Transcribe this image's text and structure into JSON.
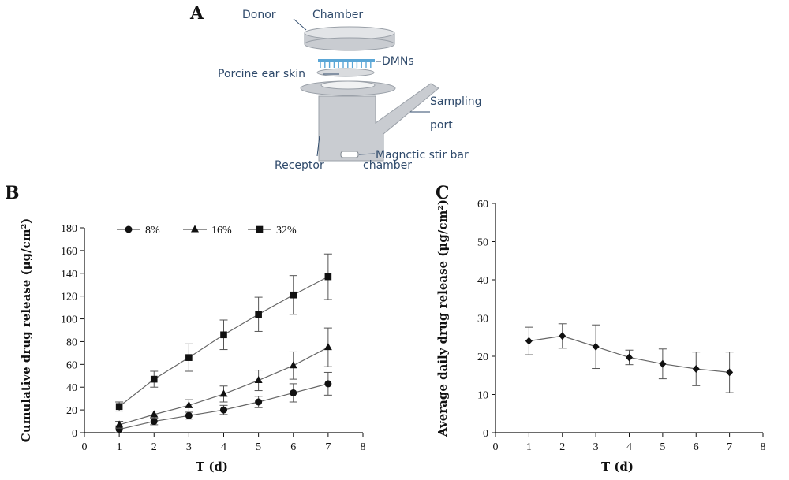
{
  "panel_letters": [
    "A",
    "B",
    "C"
  ],
  "diagram": {
    "labels": {
      "donor": "Donor",
      "chamber": "Chamber",
      "dmns": "DMNs",
      "skin": "Porcine ear skin",
      "sampling": "Sampling",
      "port": "port",
      "stir": "Magnctic stir bar",
      "receptor": "Receptor",
      "receptor_chamber": "chamber"
    },
    "colors": {
      "body": "#c9ccd1",
      "edge": "#9aa0a8",
      "needles": "#5aa6d6",
      "text": "#2f4a6b"
    }
  },
  "chart_data": [
    {
      "type": "line",
      "panel": "B",
      "xlabel": "T (d)",
      "ylabel": "Cumulative drug release (μg/cm²)",
      "xlim": [
        0,
        8
      ],
      "ylim": [
        0,
        180
      ],
      "xticks": [
        0,
        1,
        2,
        3,
        4,
        5,
        6,
        7,
        8
      ],
      "yticks": [
        0,
        20,
        40,
        60,
        80,
        100,
        120,
        140,
        160,
        180
      ],
      "legend_position": "top",
      "x": [
        1,
        2,
        3,
        4,
        5,
        6,
        7
      ],
      "series": [
        {
          "name": "8%",
          "marker": "circle",
          "values": [
            3,
            10,
            15,
            20,
            27,
            35,
            43
          ],
          "errors": [
            3,
            3,
            3,
            4,
            5,
            8,
            10
          ]
        },
        {
          "name": "16%",
          "marker": "triangle",
          "values": [
            7,
            16,
            24,
            34,
            46,
            59,
            75
          ],
          "errors": [
            3,
            3,
            5,
            7,
            9,
            12,
            17
          ]
        },
        {
          "name": "32%",
          "marker": "square",
          "values": [
            23,
            47,
            66,
            86,
            104,
            121,
            137
          ],
          "errors": [
            4,
            7,
            12,
            13,
            15,
            17,
            20
          ]
        }
      ]
    },
    {
      "type": "line",
      "panel": "C",
      "xlabel": "T (d)",
      "ylabel": "Average daily drug release (μg/cm²)",
      "xlim": [
        0,
        8
      ],
      "ylim": [
        0,
        60
      ],
      "xticks": [
        0,
        1,
        2,
        3,
        4,
        5,
        6,
        7,
        8
      ],
      "yticks": [
        0,
        10,
        20,
        30,
        40,
        50,
        60
      ],
      "x": [
        1,
        2,
        3,
        4,
        5,
        6,
        7
      ],
      "series": [
        {
          "marker": "diamond",
          "values": [
            24,
            25.3,
            22.5,
            19.7,
            18,
            16.7,
            15.8
          ],
          "errors": [
            3.6,
            3.2,
            5.7,
            1.9,
            3.9,
            4.4,
            5.3
          ]
        }
      ]
    }
  ]
}
